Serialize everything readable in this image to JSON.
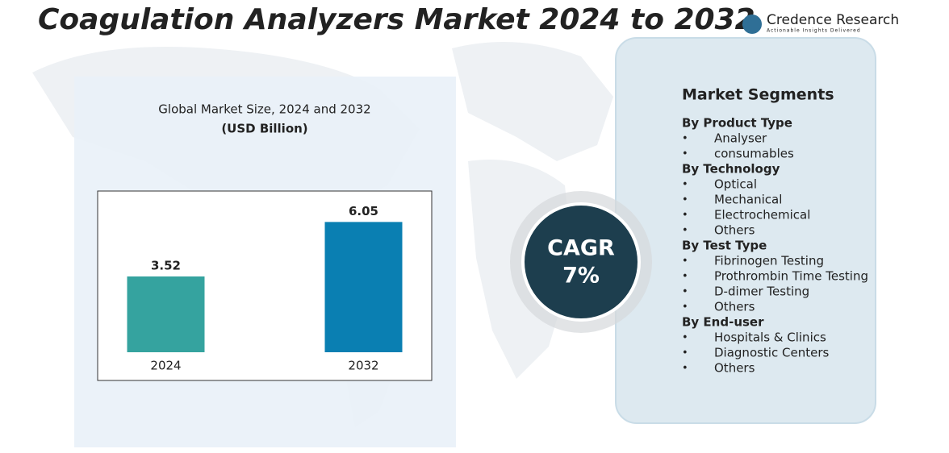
{
  "title": "Coagulation Analyzers Market 2024 to 2032",
  "logo": {
    "name": "Credence Research",
    "tagline": "Actionable Insights Delivered"
  },
  "chart_data": {
    "type": "bar",
    "title": "Global Market Size, 2024 and 2032",
    "subtitle": "(USD Billion)",
    "categories": [
      "2024",
      "2032"
    ],
    "values": [
      3.52,
      6.05
    ],
    "colors": [
      "#35a39f",
      "#0a7fb2"
    ],
    "ylim": [
      0,
      7
    ]
  },
  "cagr": {
    "label": "CAGR",
    "value": "7%"
  },
  "segments": {
    "title": "Market Segments",
    "groups": [
      {
        "name": "By Product Type",
        "items": [
          "Analyser",
          "consumables"
        ]
      },
      {
        "name": "By Technology",
        "items": [
          "Optical",
          "Mechanical",
          "Electrochemical",
          "Others"
        ]
      },
      {
        "name": "By Test Type",
        "items": [
          "Fibrinogen Testing",
          "Prothrombin Time Testing",
          "D-dimer Testing",
          "Others"
        ]
      },
      {
        "name": "By End-user",
        "items": [
          "Hospitals & Clinics",
          "Diagnostic Centers",
          "Others"
        ]
      }
    ]
  }
}
